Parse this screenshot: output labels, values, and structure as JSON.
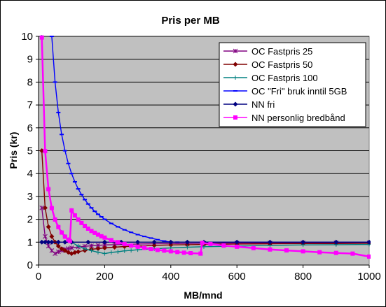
{
  "chart_data": {
    "type": "line",
    "title": "Pris per MB",
    "xlabel": "MB/mnd",
    "ylabel": "Pris (kr)",
    "xlim": [
      0,
      1000
    ],
    "ylim": [
      0,
      10
    ],
    "xticks": [
      0,
      200,
      400,
      600,
      800,
      1000
    ],
    "yticks": [
      0,
      1,
      2,
      3,
      4,
      5,
      6,
      7,
      8,
      9,
      10
    ],
    "grid": "horizontal",
    "plot_background": "#c0c0c0",
    "legend_position": "top-right",
    "series": [
      {
        "name": "OC Fastpris 25",
        "color": "#800080",
        "marker": "star",
        "points": [
          [
            10,
            2.5
          ],
          [
            20,
            1.25
          ],
          [
            30,
            0.83
          ],
          [
            40,
            0.63
          ],
          [
            50,
            0.5
          ],
          [
            60,
            0.58
          ],
          [
            70,
            0.64
          ],
          [
            80,
            0.69
          ],
          [
            90,
            0.72
          ],
          [
            100,
            0.75
          ],
          [
            120,
            0.79
          ],
          [
            140,
            0.82
          ],
          [
            160,
            0.84
          ],
          [
            180,
            0.86
          ],
          [
            200,
            0.88
          ],
          [
            230,
            0.89
          ],
          [
            260,
            0.9
          ],
          [
            300,
            0.92
          ],
          [
            350,
            0.93
          ],
          [
            400,
            0.94
          ],
          [
            450,
            0.94
          ],
          [
            500,
            0.95
          ],
          [
            600,
            0.96
          ],
          [
            700,
            0.96
          ],
          [
            800,
            0.97
          ],
          [
            900,
            0.97
          ],
          [
            1000,
            0.97
          ]
        ]
      },
      {
        "name": "OC Fastpris 50",
        "color": "#800000",
        "marker": "diamond",
        "points": [
          [
            10,
            5.0
          ],
          [
            20,
            2.5
          ],
          [
            30,
            1.67
          ],
          [
            40,
            1.25
          ],
          [
            50,
            1.0
          ],
          [
            60,
            0.83
          ],
          [
            70,
            0.71
          ],
          [
            80,
            0.63
          ],
          [
            90,
            0.56
          ],
          [
            100,
            0.5
          ],
          [
            110,
            0.55
          ],
          [
            120,
            0.58
          ],
          [
            140,
            0.64
          ],
          [
            160,
            0.69
          ],
          [
            180,
            0.72
          ],
          [
            200,
            0.75
          ],
          [
            230,
            0.78
          ],
          [
            260,
            0.81
          ],
          [
            300,
            0.83
          ],
          [
            350,
            0.86
          ],
          [
            400,
            0.88
          ],
          [
            450,
            0.89
          ],
          [
            500,
            0.9
          ],
          [
            600,
            0.92
          ],
          [
            700,
            0.93
          ],
          [
            800,
            0.94
          ],
          [
            900,
            0.94
          ],
          [
            1000,
            0.95
          ]
        ]
      },
      {
        "name": "OC Fastpris 100",
        "color": "#008080",
        "marker": "plus",
        "points": [
          [
            10,
            10.0
          ],
          [
            20,
            5.0
          ],
          [
            30,
            3.33
          ],
          [
            40,
            2.5
          ],
          [
            50,
            2.0
          ],
          [
            60,
            1.67
          ],
          [
            70,
            1.43
          ],
          [
            80,
            1.25
          ],
          [
            90,
            1.11
          ],
          [
            100,
            1.0
          ],
          [
            120,
            0.83
          ],
          [
            140,
            0.71
          ],
          [
            160,
            0.63
          ],
          [
            180,
            0.56
          ],
          [
            200,
            0.5
          ],
          [
            220,
            0.55
          ],
          [
            240,
            0.58
          ],
          [
            260,
            0.62
          ],
          [
            280,
            0.64
          ],
          [
            300,
            0.67
          ],
          [
            350,
            0.71
          ],
          [
            400,
            0.75
          ],
          [
            450,
            0.78
          ],
          [
            500,
            0.8
          ],
          [
            600,
            0.83
          ],
          [
            700,
            0.86
          ],
          [
            800,
            0.88
          ],
          [
            900,
            0.89
          ],
          [
            1000,
            0.9
          ]
        ]
      },
      {
        "name": "OC \"Fri\" bruk inntil 5GB",
        "color": "#0000ff",
        "marker": "dash",
        "points": [
          [
            40,
            10.0
          ],
          [
            50,
            8.0
          ],
          [
            60,
            6.67
          ],
          [
            70,
            5.71
          ],
          [
            80,
            5.0
          ],
          [
            90,
            4.44
          ],
          [
            100,
            4.0
          ],
          [
            110,
            3.64
          ],
          [
            120,
            3.33
          ],
          [
            130,
            3.08
          ],
          [
            140,
            2.86
          ],
          [
            150,
            2.67
          ],
          [
            160,
            2.5
          ],
          [
            170,
            2.35
          ],
          [
            180,
            2.22
          ],
          [
            190,
            2.11
          ],
          [
            200,
            2.0
          ],
          [
            220,
            1.82
          ],
          [
            240,
            1.67
          ],
          [
            260,
            1.54
          ],
          [
            280,
            1.43
          ],
          [
            300,
            1.33
          ],
          [
            320,
            1.25
          ],
          [
            340,
            1.18
          ],
          [
            360,
            1.11
          ],
          [
            380,
            1.05
          ],
          [
            400,
            1.0
          ],
          [
            420,
            1.0
          ],
          [
            500,
            1.0
          ],
          [
            600,
            1.0
          ],
          [
            700,
            1.0
          ],
          [
            800,
            1.0
          ],
          [
            900,
            1.0
          ],
          [
            1000,
            1.0
          ]
        ]
      },
      {
        "name": "NN fri",
        "color": "#000080",
        "marker": "diamond",
        "points": [
          [
            10,
            1.0
          ],
          [
            20,
            1.0
          ],
          [
            30,
            1.0
          ],
          [
            40,
            1.0
          ],
          [
            60,
            1.0
          ],
          [
            80,
            1.0
          ],
          [
            100,
            1.0
          ],
          [
            150,
            1.0
          ],
          [
            200,
            1.0
          ],
          [
            250,
            1.0
          ],
          [
            300,
            1.0
          ],
          [
            350,
            1.0
          ],
          [
            400,
            1.0
          ],
          [
            450,
            1.0
          ],
          [
            500,
            1.0
          ],
          [
            600,
            1.0
          ],
          [
            700,
            1.0
          ],
          [
            800,
            1.0
          ],
          [
            900,
            1.0
          ],
          [
            1000,
            1.0
          ]
        ]
      },
      {
        "name": "NN personlig bredbånd",
        "color": "#ff00ff",
        "marker": "square",
        "points": [
          [
            10,
            9.95
          ],
          [
            20,
            4.98
          ],
          [
            30,
            3.32
          ],
          [
            40,
            2.49
          ],
          [
            50,
            1.99
          ],
          [
            60,
            1.66
          ],
          [
            70,
            1.42
          ],
          [
            80,
            1.24
          ],
          [
            90,
            1.11
          ],
          [
            95,
            1.05
          ],
          [
            100,
            2.39
          ],
          [
            110,
            2.17
          ],
          [
            120,
            1.99
          ],
          [
            130,
            1.84
          ],
          [
            140,
            1.71
          ],
          [
            150,
            1.59
          ],
          [
            160,
            1.49
          ],
          [
            170,
            1.41
          ],
          [
            180,
            1.33
          ],
          [
            190,
            1.26
          ],
          [
            200,
            1.2
          ],
          [
            220,
            1.09
          ],
          [
            240,
            1.0
          ],
          [
            260,
            0.92
          ],
          [
            280,
            0.85
          ],
          [
            300,
            0.8
          ],
          [
            320,
            0.75
          ],
          [
            340,
            0.7
          ],
          [
            360,
            0.66
          ],
          [
            380,
            0.63
          ],
          [
            400,
            0.6
          ],
          [
            420,
            0.57
          ],
          [
            440,
            0.54
          ],
          [
            460,
            0.52
          ],
          [
            490,
            0.5
          ],
          [
            495,
            0.97
          ],
          [
            520,
            0.92
          ],
          [
            560,
            0.85
          ],
          [
            600,
            0.8
          ],
          [
            650,
            0.74
          ],
          [
            700,
            0.68
          ],
          [
            750,
            0.64
          ],
          [
            800,
            0.6
          ],
          [
            850,
            0.56
          ],
          [
            900,
            0.53
          ],
          [
            950,
            0.5
          ],
          [
            1000,
            0.37
          ]
        ]
      }
    ]
  }
}
